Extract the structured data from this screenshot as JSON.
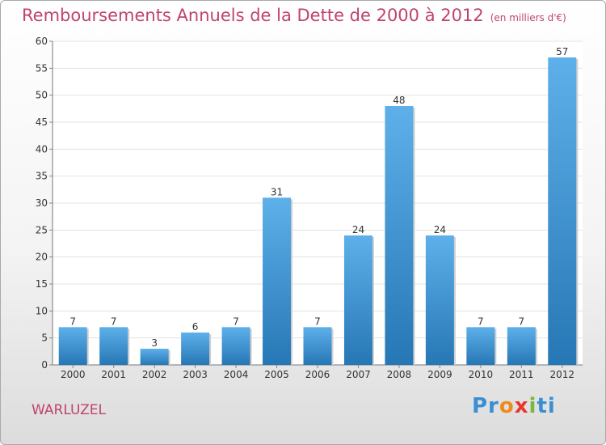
{
  "title": "Remboursements Annuels de la Dette de 2000 à 2012",
  "unit": "(en milliers d'€)",
  "commune": "WARLUZEL",
  "brand": {
    "text": "Proxiti",
    "parts": [
      "Pr",
      "o",
      "x",
      "i",
      "ti"
    ],
    "colors": [
      "#3a8fd3",
      "#f08a1c",
      "#e8362a",
      "#7bb73a",
      "#3a8fd3"
    ]
  },
  "colors": {
    "title": "#c0436f",
    "bar_top": "#5eb0ea",
    "bar_bottom": "#2677b5",
    "grid": "#e3e3e3"
  },
  "chart_data": {
    "type": "bar",
    "title": "Remboursements Annuels de la Dette de 2000 à 2012",
    "categories": [
      "2000",
      "2001",
      "2002",
      "2003",
      "2004",
      "2005",
      "2006",
      "2007",
      "2008",
      "2009",
      "2010",
      "2011",
      "2012"
    ],
    "values": [
      7,
      7,
      3,
      6,
      7,
      31,
      7,
      24,
      48,
      24,
      7,
      7,
      57
    ],
    "xlabel": "",
    "ylabel": "",
    "ylim": [
      0,
      60
    ],
    "yticks": [
      0,
      5,
      10,
      15,
      20,
      25,
      30,
      35,
      40,
      45,
      50,
      55,
      60
    ],
    "grid": true,
    "data_labels": true
  }
}
